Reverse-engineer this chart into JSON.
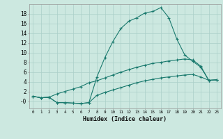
{
  "title": "",
  "xlabel": "Humidex (Indice chaleur)",
  "background_color": "#cce8e0",
  "line_color": "#1a7a6e",
  "grid_color": "#aacfc8",
  "xlim": [
    -0.5,
    23.5
  ],
  "ylim": [
    -1.5,
    20
  ],
  "x_ticks": [
    0,
    1,
    2,
    3,
    4,
    5,
    6,
    7,
    8,
    9,
    10,
    11,
    12,
    13,
    14,
    15,
    16,
    17,
    18,
    19,
    20,
    21,
    22,
    23
  ],
  "y_ticks": [
    0,
    2,
    4,
    6,
    8,
    10,
    12,
    14,
    16,
    18
  ],
  "y_tick_labels": [
    "-0",
    "2",
    "4",
    "6",
    "8",
    "10",
    "12",
    "14",
    "16",
    "18"
  ],
  "series": [
    {
      "x": [
        0,
        1,
        2,
        3,
        4,
        5,
        6,
        7,
        8,
        9,
        10,
        11,
        12,
        13,
        14,
        15,
        16,
        17,
        18,
        19,
        20,
        21,
        22,
        23
      ],
      "y": [
        1.0,
        0.7,
        0.8,
        -0.3,
        -0.3,
        -0.4,
        -0.5,
        -0.3,
        5.0,
        9.0,
        12.3,
        15.0,
        16.5,
        17.2,
        18.2,
        18.5,
        19.3,
        17.2,
        12.8,
        9.5,
        8.2,
        7.0,
        4.3,
        4.4
      ]
    },
    {
      "x": [
        0,
        1,
        2,
        3,
        4,
        5,
        6,
        7,
        8,
        9,
        10,
        11,
        12,
        13,
        14,
        15,
        16,
        17,
        18,
        19,
        20,
        21,
        22,
        23
      ],
      "y": [
        1.0,
        0.7,
        0.8,
        1.5,
        2.0,
        2.5,
        3.0,
        3.8,
        4.2,
        4.8,
        5.4,
        6.0,
        6.5,
        7.0,
        7.4,
        7.8,
        8.0,
        8.3,
        8.5,
        8.7,
        8.5,
        7.2,
        4.3,
        4.4
      ]
    },
    {
      "x": [
        0,
        1,
        2,
        3,
        4,
        5,
        6,
        7,
        8,
        9,
        10,
        11,
        12,
        13,
        14,
        15,
        16,
        17,
        18,
        19,
        20,
        21,
        22,
        23
      ],
      "y": [
        1.0,
        0.7,
        0.8,
        -0.3,
        -0.3,
        -0.4,
        -0.5,
        -0.3,
        1.2,
        1.8,
        2.3,
        2.8,
        3.3,
        3.8,
        4.2,
        4.5,
        4.8,
        5.0,
        5.2,
        5.4,
        5.5,
        5.0,
        4.3,
        4.4
      ]
    }
  ]
}
